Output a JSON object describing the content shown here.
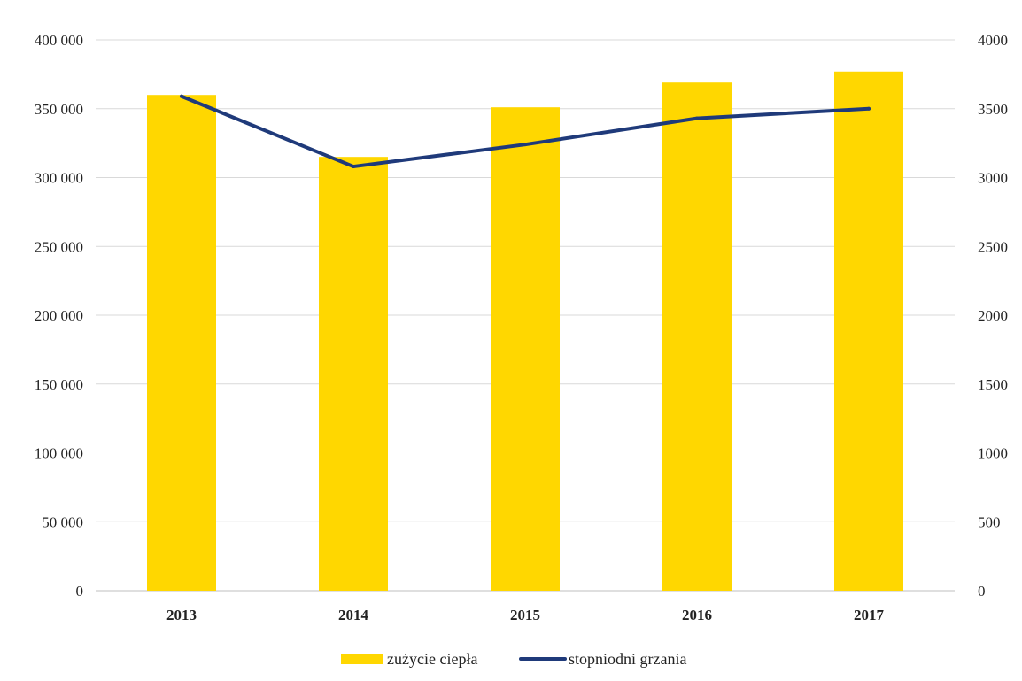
{
  "chart_data": {
    "type": "bar",
    "categories": [
      "2013",
      "2014",
      "2015",
      "2016",
      "2017"
    ],
    "series": [
      {
        "name": "zużycie ciepła",
        "type": "bar",
        "axis": "left",
        "color": "#FFD700",
        "values": [
          360000,
          315000,
          351000,
          369000,
          377000
        ]
      },
      {
        "name": "stopniodni grzania",
        "type": "line",
        "axis": "right",
        "color": "#1F3A7A",
        "values": [
          3590,
          3080,
          3240,
          3430,
          3500
        ]
      }
    ],
    "y_left": {
      "ylim": [
        0,
        400000
      ],
      "ticks": [
        0,
        50000,
        100000,
        150000,
        200000,
        250000,
        300000,
        350000,
        400000
      ],
      "tick_labels": [
        "0",
        "50 000",
        "100 000",
        "150 000",
        "200 000",
        "250 000",
        "300 000",
        "350 000",
        "400 000"
      ]
    },
    "y_right": {
      "ylim": [
        0,
        4000
      ],
      "ticks": [
        0,
        500,
        1000,
        1500,
        2000,
        2500,
        3000,
        3500,
        4000
      ],
      "tick_labels": [
        "0",
        "500",
        "1000",
        "1500",
        "2000",
        "2500",
        "3000",
        "3500",
        "4000"
      ]
    },
    "grid": true,
    "legend": "bottom-center",
    "title": "",
    "xlabel": "",
    "ylabel": ""
  }
}
